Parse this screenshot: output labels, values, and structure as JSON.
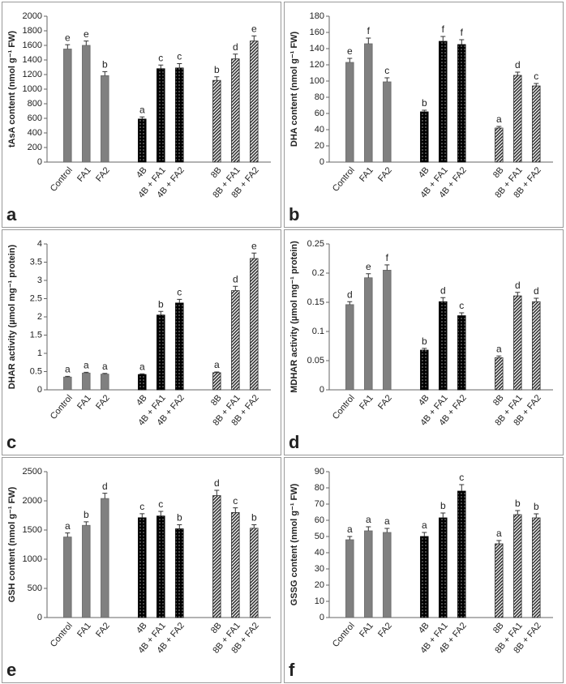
{
  "chart_data": [
    {
      "type": "bar",
      "panel": "a",
      "y_label": "tAsA content (nmol g⁻¹ FW)",
      "categories": [
        "Control",
        "FA1",
        "FA2",
        "4B",
        "4B + FA1",
        "4B + FA2",
        "8B",
        "8B + FA1",
        "8B + FA2"
      ],
      "values": [
        1550,
        1600,
        1185,
        590,
        1280,
        1290,
        1120,
        1415,
        1660
      ],
      "errors": [
        60,
        60,
        55,
        30,
        50,
        60,
        50,
        65,
        70
      ],
      "letters": [
        "e",
        "e",
        "b",
        "a",
        "c",
        "c",
        "b",
        "d",
        "e"
      ],
      "colors": [
        "#808080",
        "#808080",
        "#808080",
        "#000000",
        "#000000",
        "#000000",
        "#333333",
        "#333333",
        "#333333"
      ],
      "patterns": [
        "solid",
        "solid",
        "solid",
        "dots",
        "dots",
        "dots",
        "stripes",
        "stripes",
        "stripes"
      ],
      "ylim": [
        0,
        2000
      ],
      "yticks": [
        0,
        200,
        400,
        600,
        800,
        1000,
        1200,
        1400,
        1600,
        1800,
        2000
      ]
    },
    {
      "type": "bar",
      "panel": "b",
      "y_label": "DHA content (nmol g⁻¹ FW)",
      "categories": [
        "Control",
        "FA1",
        "FA2",
        "4B",
        "4B + FA1",
        "4B + FA2",
        "8B",
        "8B + FA1",
        "8B + FA2"
      ],
      "values": [
        123,
        146,
        99,
        62,
        149,
        145,
        42,
        107,
        94
      ],
      "errors": [
        5,
        7,
        5,
        2,
        6,
        6,
        2,
        4,
        3
      ],
      "letters": [
        "e",
        "f",
        "c",
        "b",
        "f",
        "f",
        "a",
        "d",
        "c"
      ],
      "colors": [
        "#808080",
        "#808080",
        "#808080",
        "#000000",
        "#000000",
        "#000000",
        "#333333",
        "#333333",
        "#333333"
      ],
      "patterns": [
        "solid",
        "solid",
        "solid",
        "dots",
        "dots",
        "dots",
        "stripes",
        "stripes",
        "stripes"
      ],
      "ylim": [
        0,
        180
      ],
      "yticks": [
        0,
        20,
        40,
        60,
        80,
        100,
        120,
        140,
        160,
        180
      ]
    },
    {
      "type": "bar",
      "panel": "c",
      "y_label": "DHAR activity (µmol mg⁻¹ protein)",
      "categories": [
        "Control",
        "FA1",
        "FA2",
        "4B",
        "4B + FA1",
        "4B + FA2",
        "8B",
        "8B + FA1",
        "8B + FA2"
      ],
      "values": [
        0.35,
        0.46,
        0.43,
        0.42,
        2.05,
        2.38,
        0.47,
        2.72,
        3.6
      ],
      "errors": [
        0.02,
        0.02,
        0.02,
        0.02,
        0.1,
        0.1,
        0.02,
        0.12,
        0.15
      ],
      "letters": [
        "a",
        "a",
        "a",
        "a",
        "b",
        "c",
        "a",
        "d",
        "e"
      ],
      "colors": [
        "#808080",
        "#808080",
        "#808080",
        "#000000",
        "#000000",
        "#000000",
        "#333333",
        "#333333",
        "#333333"
      ],
      "patterns": [
        "solid",
        "solid",
        "solid",
        "dots",
        "dots",
        "dots",
        "stripes",
        "stripes",
        "stripes"
      ],
      "ylim": [
        0,
        4
      ],
      "yticks": [
        0,
        0.5,
        1,
        1.5,
        2,
        2.5,
        3,
        3.5,
        4
      ]
    },
    {
      "type": "bar",
      "panel": "d",
      "y_label": "MDHAR activity (µmol mg⁻¹ protein)",
      "categories": [
        "Control",
        "FA1",
        "FA2",
        "4B",
        "4B + FA1",
        "4B + FA2",
        "8B",
        "8B + FA1",
        "8B + FA2"
      ],
      "values": [
        0.146,
        0.192,
        0.205,
        0.068,
        0.151,
        0.127,
        0.055,
        0.161,
        0.151
      ],
      "errors": [
        0.005,
        0.007,
        0.009,
        0.003,
        0.007,
        0.005,
        0.003,
        0.006,
        0.006
      ],
      "letters": [
        "d",
        "e",
        "f",
        "b",
        "d",
        "c",
        "a",
        "d",
        "d"
      ],
      "colors": [
        "#808080",
        "#808080",
        "#808080",
        "#000000",
        "#000000",
        "#000000",
        "#333333",
        "#333333",
        "#333333"
      ],
      "patterns": [
        "solid",
        "solid",
        "solid",
        "dots",
        "dots",
        "dots",
        "stripes",
        "stripes",
        "stripes"
      ],
      "ylim": [
        0,
        0.25
      ],
      "yticks": [
        0,
        0.05,
        0.1,
        0.15,
        0.2,
        0.25
      ]
    },
    {
      "type": "bar",
      "panel": "e",
      "y_label": "GSH content (nmol g⁻¹ FW)",
      "categories": [
        "Control",
        "FA1",
        "FA2",
        "4B",
        "4B + FA1",
        "4B + FA2",
        "8B",
        "8B + FA1",
        "8B + FA2"
      ],
      "values": [
        1380,
        1580,
        2040,
        1710,
        1740,
        1520,
        2090,
        1800,
        1530
      ],
      "errors": [
        70,
        60,
        90,
        70,
        80,
        70,
        90,
        80,
        60
      ],
      "letters": [
        "a",
        "b",
        "d",
        "c",
        "c",
        "b",
        "d",
        "c",
        "b"
      ],
      "colors": [
        "#808080",
        "#808080",
        "#808080",
        "#000000",
        "#000000",
        "#000000",
        "#333333",
        "#333333",
        "#333333"
      ],
      "patterns": [
        "solid",
        "solid",
        "solid",
        "dots",
        "dots",
        "dots",
        "stripes",
        "stripes",
        "stripes"
      ],
      "ylim": [
        0,
        2500
      ],
      "yticks": [
        0,
        500,
        1000,
        1500,
        2000,
        2500
      ]
    },
    {
      "type": "bar",
      "panel": "f",
      "y_label": "GSSG content (nmol g⁻¹ FW)",
      "categories": [
        "Control",
        "FA1",
        "FA2",
        "4B",
        "4B + FA1",
        "4B + FA2",
        "8B",
        "8B + FA1",
        "8B + FA2"
      ],
      "values": [
        48,
        53.5,
        52.5,
        50,
        61.5,
        78,
        45.5,
        63.5,
        61.5
      ],
      "errors": [
        2,
        2.5,
        2.5,
        2.5,
        3,
        4,
        2,
        2.5,
        2.5
      ],
      "letters": [
        "a",
        "a",
        "a",
        "a",
        "b",
        "c",
        "a",
        "b",
        "b"
      ],
      "colors": [
        "#808080",
        "#808080",
        "#808080",
        "#000000",
        "#000000",
        "#000000",
        "#333333",
        "#333333",
        "#333333"
      ],
      "patterns": [
        "solid",
        "solid",
        "solid",
        "dots",
        "dots",
        "dots",
        "stripes",
        "stripes",
        "stripes"
      ],
      "ylim": [
        0,
        90
      ],
      "yticks": [
        0,
        10,
        20,
        30,
        40,
        50,
        60,
        70,
        80,
        90
      ]
    }
  ]
}
